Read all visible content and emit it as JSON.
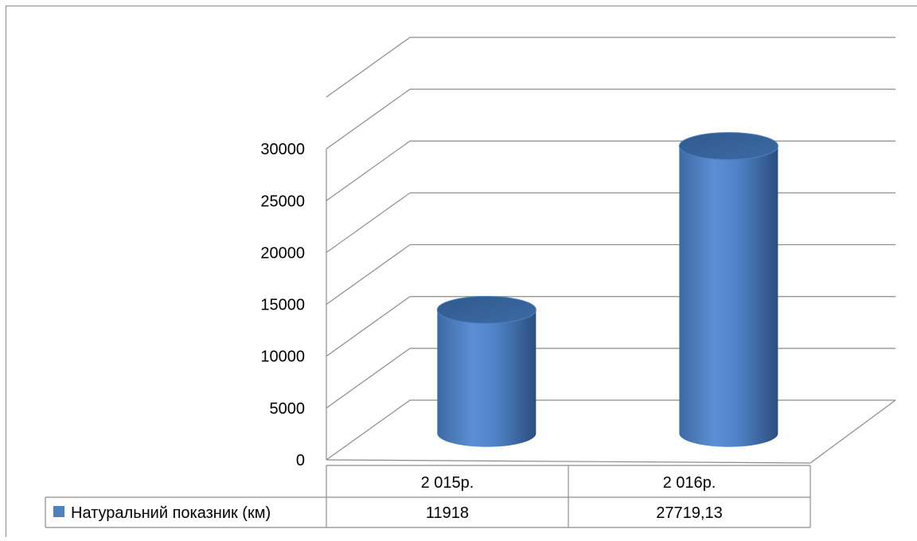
{
  "chart_data": {
    "type": "bar",
    "style": "3d-cylinder",
    "title": "",
    "xlabel": "",
    "ylabel": "",
    "categories": [
      "2 015р.",
      "2 016р."
    ],
    "series": [
      {
        "name": "Натуральний показник (км)",
        "values": [
          11918,
          27719.13
        ],
        "value_labels": [
          "11918",
          "27719,13"
        ],
        "color": "#4F81BD"
      }
    ],
    "ylim": [
      0,
      35000
    ],
    "yticks": [
      0,
      5000,
      10000,
      15000,
      20000,
      25000,
      30000
    ],
    "ytick_labels": [
      "0",
      "5000",
      "10000",
      "15000",
      "20000",
      "25000",
      "30000"
    ],
    "grid": true,
    "legend": "data-table-left",
    "data_table": true
  }
}
